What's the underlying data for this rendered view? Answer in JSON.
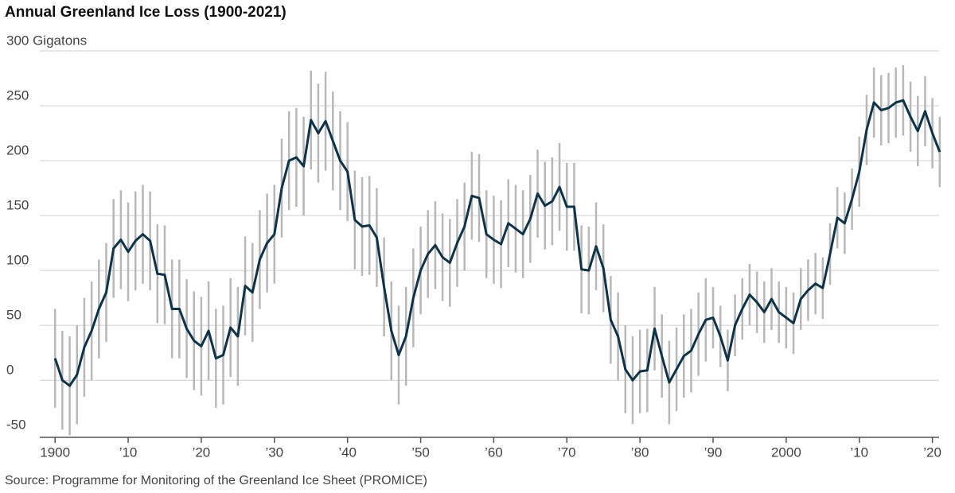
{
  "chart_data": {
    "type": "line",
    "title": "Annual Greenland Ice Loss (1900-2021)",
    "source": "Source: Programme for Monitoring of the Greenland Ice Sheet (PROMICE)",
    "x": [
      1900,
      1901,
      1902,
      1903,
      1904,
      1905,
      1906,
      1907,
      1908,
      1909,
      1910,
      1911,
      1912,
      1913,
      1914,
      1915,
      1916,
      1917,
      1918,
      1919,
      1920,
      1921,
      1922,
      1923,
      1924,
      1925,
      1926,
      1927,
      1928,
      1929,
      1930,
      1931,
      1932,
      1933,
      1934,
      1935,
      1936,
      1937,
      1938,
      1939,
      1940,
      1941,
      1942,
      1943,
      1944,
      1945,
      1946,
      1947,
      1948,
      1949,
      1950,
      1951,
      1952,
      1953,
      1954,
      1955,
      1956,
      1957,
      1958,
      1959,
      1960,
      1961,
      1962,
      1963,
      1964,
      1965,
      1966,
      1967,
      1968,
      1969,
      1970,
      1971,
      1972,
      1973,
      1974,
      1975,
      1976,
      1977,
      1978,
      1979,
      1980,
      1981,
      1982,
      1983,
      1984,
      1985,
      1986,
      1987,
      1988,
      1989,
      1990,
      1991,
      1992,
      1993,
      1994,
      1995,
      1996,
      1997,
      1998,
      1999,
      2000,
      2001,
      2002,
      2003,
      2004,
      2005,
      2006,
      2007,
      2008,
      2009,
      2010,
      2011,
      2012,
      2013,
      2014,
      2015,
      2016,
      2017,
      2018,
      2019,
      2020,
      2021
    ],
    "series": [
      {
        "color": "#0d3349",
        "error_color": "#b8b8b8",
        "values": [
          20,
          0,
          -5,
          5,
          30,
          45,
          65,
          80,
          120,
          128,
          117,
          127,
          133,
          127,
          97,
          96,
          65,
          65,
          47,
          36,
          31,
          45,
          20,
          23,
          48,
          40,
          86,
          80,
          110,
          125,
          133,
          175,
          200,
          203,
          195,
          237,
          225,
          236,
          218,
          200,
          190,
          146,
          140,
          141,
          130,
          85,
          45,
          23,
          40,
          75,
          100,
          115,
          123,
          112,
          107,
          125,
          140,
          168,
          166,
          133,
          128,
          124,
          143,
          138,
          133,
          147,
          170,
          159,
          163,
          176,
          158,
          158,
          101,
          100,
          122,
          102,
          55,
          40,
          10,
          0,
          8,
          9,
          47,
          22,
          -2,
          10,
          22,
          27,
          42,
          55,
          57,
          40,
          18,
          50,
          65,
          78,
          71,
          62,
          74,
          62,
          57,
          52,
          74,
          82,
          88,
          84,
          115,
          148,
          143,
          165,
          190,
          228,
          253,
          246,
          248,
          253,
          255,
          240,
          227,
          245,
          225,
          208
        ],
        "errors": [
          45,
          45,
          45,
          45,
          45,
          45,
          45,
          45,
          45,
          45,
          45,
          45,
          45,
          45,
          45,
          45,
          45,
          45,
          45,
          45,
          45,
          45,
          45,
          45,
          45,
          45,
          45,
          45,
          45,
          45,
          45,
          45,
          45,
          45,
          45,
          45,
          45,
          45,
          45,
          45,
          45,
          45,
          45,
          45,
          45,
          45,
          45,
          45,
          45,
          45,
          40,
          40,
          40,
          40,
          40,
          40,
          40,
          40,
          40,
          40,
          40,
          40,
          40,
          40,
          40,
          40,
          40,
          40,
          40,
          40,
          40,
          40,
          40,
          40,
          40,
          40,
          40,
          40,
          40,
          40,
          38,
          38,
          38,
          38,
          38,
          38,
          38,
          38,
          38,
          38,
          28,
          28,
          28,
          28,
          28,
          28,
          28,
          28,
          28,
          28,
          28,
          28,
          28,
          28,
          28,
          28,
          28,
          28,
          28,
          28,
          32,
          32,
          32,
          32,
          32,
          32,
          32,
          32,
          32,
          32,
          32,
          32
        ]
      }
    ],
    "xlim": [
      1899,
      2022
    ],
    "xticks": [
      1900,
      {
        "value": 1910,
        "label": "’10"
      },
      {
        "value": 1920,
        "label": "’20"
      },
      {
        "value": 1930,
        "label": "’30"
      },
      {
        "value": 1940,
        "label": "’40"
      },
      {
        "value": 1950,
        "label": "’50"
      },
      {
        "value": 1960,
        "label": "’60"
      },
      {
        "value": 1970,
        "label": "’70"
      },
      {
        "value": 1980,
        "label": "’80"
      },
      {
        "value": 1990,
        "label": "’90"
      },
      2000,
      {
        "value": 2010,
        "label": "’10"
      },
      {
        "value": 2020,
        "label": "’20"
      }
    ],
    "ylim": [
      -52,
      300
    ],
    "yticks": [
      -50,
      0,
      50,
      100,
      150,
      200,
      250,
      {
        "value": 300,
        "label": "300 Gigatons"
      }
    ],
    "grid": true
  }
}
